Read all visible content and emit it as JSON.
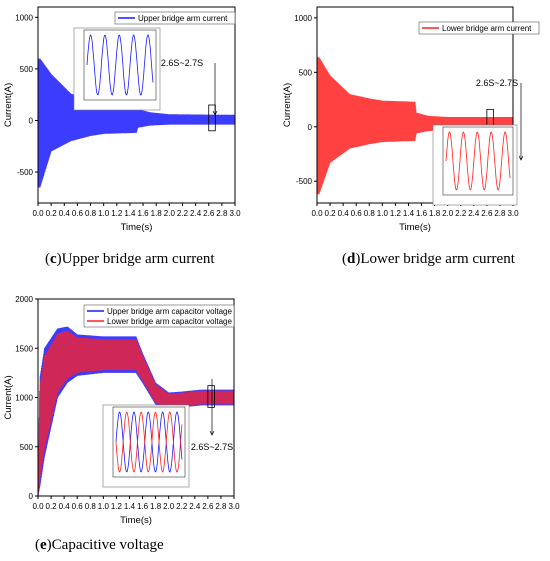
{
  "captions": {
    "c_letter": "c",
    "c_text": "Upper bridge arm current",
    "d_letter": "d",
    "d_text": "Lower bridge arm current",
    "e_letter": "e",
    "e_text": "Capacitive voltage"
  },
  "chart_data": [
    {
      "id": "c",
      "type": "line",
      "xlabel": "Time(s)",
      "ylabel": "Current(A)",
      "xlim": [
        0,
        3.0
      ],
      "ylim": [
        -800,
        1100
      ],
      "xticks": [
        0.0,
        0.2,
        0.4,
        0.6,
        0.8,
        1.0,
        1.2,
        1.4,
        1.6,
        1.8,
        2.0,
        2.2,
        2.4,
        2.6,
        2.8,
        3.0
      ],
      "yticks": [
        -500,
        0,
        500,
        1000
      ],
      "series": [
        {
          "name": "Upper bridge arm current",
          "color": "#1a1aff"
        }
      ],
      "envelope": {
        "t": [
          0.03,
          0.2,
          0.5,
          0.8,
          1.0,
          1.5,
          1.52,
          1.7,
          2.0,
          3.0
        ],
        "upper": [
          600,
          450,
          260,
          200,
          180,
          170,
          110,
          80,
          60,
          55
        ],
        "lower": [
          -650,
          -300,
          -200,
          -150,
          -130,
          -120,
          -70,
          -50,
          -40,
          -40
        ]
      },
      "annotation": "2.6S~2.7S",
      "inset": {
        "type": "line",
        "series_colors": [
          "#1a1aff"
        ]
      }
    },
    {
      "id": "d",
      "type": "line",
      "xlabel": "Time(s)",
      "ylabel": "Current(A)",
      "xlim": [
        0,
        3.0
      ],
      "ylim": [
        -700,
        1100
      ],
      "xticks": [
        0.0,
        0.2,
        0.4,
        0.6,
        0.8,
        1.0,
        1.2,
        1.4,
        1.6,
        1.8,
        2.0,
        2.2,
        2.4,
        2.6,
        2.8,
        3.0
      ],
      "yticks": [
        -500,
        0,
        500,
        1000
      ],
      "series": [
        {
          "name": "Lower bridge arm current",
          "color": "#ff2020"
        }
      ],
      "envelope": {
        "t": [
          0.03,
          0.2,
          0.5,
          0.8,
          1.0,
          1.5,
          1.52,
          1.7,
          2.0,
          3.0
        ],
        "upper": [
          640,
          470,
          300,
          260,
          240,
          230,
          130,
          100,
          90,
          90
        ],
        "lower": [
          -620,
          -330,
          -200,
          -160,
          -140,
          -130,
          -60,
          -40,
          -30,
          -30
        ]
      },
      "annotation": "2.6S~2.7S",
      "inset": {
        "type": "line",
        "series_colors": [
          "#ff2020"
        ]
      }
    },
    {
      "id": "e",
      "type": "line",
      "xlabel": "Time(s)",
      "ylabel": "Current(A)",
      "xlim": [
        0,
        3.0
      ],
      "ylim": [
        0,
        2000
      ],
      "xticks": [
        0.0,
        0.2,
        0.4,
        0.6,
        0.8,
        1.0,
        1.2,
        1.4,
        1.6,
        1.8,
        2.0,
        2.2,
        2.4,
        2.6,
        2.8,
        3.0
      ],
      "yticks": [
        0,
        500,
        1000,
        1500,
        2000
      ],
      "series": [
        {
          "name": "Upper bridge arm capacitor voltage",
          "color": "#1a1aff"
        },
        {
          "name": "Lower bridge arm capacitor voltage",
          "color": "#ff2020"
        }
      ],
      "envelope": {
        "t": [
          0.0,
          0.03,
          0.1,
          0.2,
          0.3,
          0.45,
          0.6,
          1.0,
          1.5,
          1.6,
          1.8,
          2.0,
          2.2,
          2.5,
          3.0
        ],
        "upper": [
          0,
          1200,
          1500,
          1600,
          1700,
          1720,
          1640,
          1620,
          1620,
          1450,
          1150,
          1050,
          1060,
          1080,
          1080
        ],
        "lower": [
          0,
          100,
          400,
          700,
          1000,
          1150,
          1220,
          1250,
          1250,
          1150,
          930,
          880,
          900,
          920,
          920
        ]
      },
      "annotation": "2.6S~2.7S",
      "inset": {
        "type": "line",
        "series_colors": [
          "#1a1aff",
          "#ff2020"
        ]
      }
    }
  ]
}
